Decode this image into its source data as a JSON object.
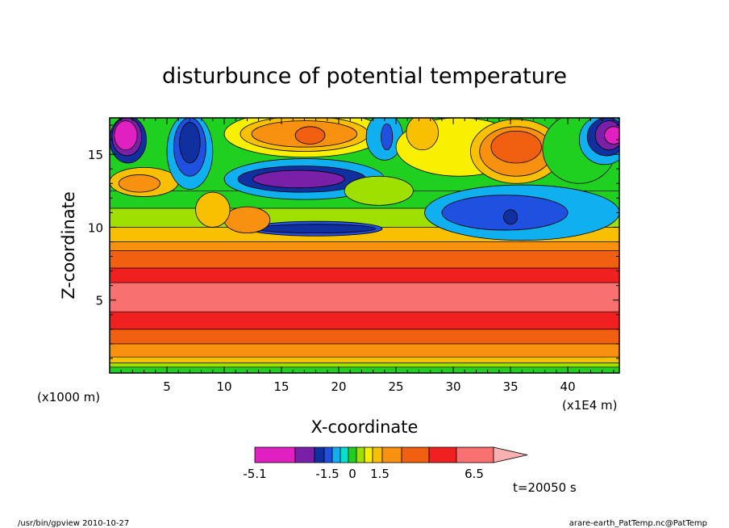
{
  "chart_data": {
    "type": "heatmap",
    "title": "disturbunce of potential temperature",
    "xlabel": "X-coordinate",
    "ylabel": "Z-coordinate",
    "x_unit": "(x1E4 m)",
    "y_unit": "(x1000 m)",
    "x_range": [
      0,
      44.5
    ],
    "y_range": [
      0,
      17.5
    ],
    "x_ticks": [
      5,
      10,
      15,
      20,
      25,
      30,
      35,
      40
    ],
    "y_ticks": [
      5,
      10,
      15
    ],
    "time_label": "t=20050 s",
    "colorbar": {
      "tick_labels": [
        "-5.1",
        "-1.5",
        "0",
        "1.5",
        "6.5"
      ],
      "colors": [
        "#e020c0",
        "#7a1fa8",
        "#1030a0",
        "#2050e0",
        "#10b0f0",
        "#00e0d0",
        "#20d020",
        "#a0e000",
        "#f8f000",
        "#f8c000",
        "#f89010",
        "#f06010",
        "#f02020",
        "#f87070",
        "#f8b0b0"
      ]
    },
    "bands": [
      {
        "z": 0.4,
        "color": "#20d020"
      },
      {
        "z": 0.7,
        "color": "#a0e000"
      },
      {
        "z": 1.1,
        "color": "#f8c000"
      },
      {
        "z": 2.0,
        "color": "#f89010"
      },
      {
        "z": 3.0,
        "color": "#f06010"
      },
      {
        "z": 4.2,
        "color": "#f02020"
      },
      {
        "z": 6.2,
        "color": "#f87070"
      },
      {
        "z": 7.2,
        "color": "#f02020"
      },
      {
        "z": 8.4,
        "color": "#f06010"
      },
      {
        "z": 9.0,
        "color": "#f89010"
      },
      {
        "z": 10.0,
        "color": "#f8c000"
      },
      {
        "z": 11.3,
        "color": "#a0e000"
      },
      {
        "z": 12.5,
        "color": "#20d020"
      },
      {
        "z": 17.5,
        "color": "#20d020"
      }
    ],
    "blobs": [
      {
        "x": 1.6,
        "z": 16.0,
        "rx": 1.6,
        "rz": 1.6,
        "color": "#1030a0"
      },
      {
        "x": 1.5,
        "z": 16.2,
        "rx": 1.3,
        "rz": 1.3,
        "color": "#7a1fa8"
      },
      {
        "x": 1.4,
        "z": 16.3,
        "rx": 1.0,
        "rz": 1.0,
        "color": "#e020c0"
      },
      {
        "x": 3.0,
        "z": 13.1,
        "rx": 3.0,
        "rz": 1.0,
        "color": "#f8c000"
      },
      {
        "x": 2.6,
        "z": 13.0,
        "rx": 1.8,
        "rz": 0.6,
        "color": "#f89010"
      },
      {
        "x": 7.0,
        "z": 15.2,
        "rx": 2.0,
        "rz": 2.6,
        "color": "#10b0f0"
      },
      {
        "x": 7.0,
        "z": 15.5,
        "rx": 1.4,
        "rz": 2.0,
        "color": "#2050e0"
      },
      {
        "x": 7.0,
        "z": 15.8,
        "rx": 0.9,
        "rz": 1.4,
        "color": "#1030a0"
      },
      {
        "x": 17.0,
        "z": 16.4,
        "rx": 7.0,
        "rz": 1.6,
        "color": "#f8f000"
      },
      {
        "x": 17.0,
        "z": 16.4,
        "rx": 5.6,
        "rz": 1.2,
        "color": "#f8c000"
      },
      {
        "x": 17.0,
        "z": 16.4,
        "rx": 4.6,
        "rz": 0.9,
        "color": "#f89010"
      },
      {
        "x": 17.5,
        "z": 16.3,
        "rx": 1.3,
        "rz": 0.6,
        "color": "#f06010"
      },
      {
        "x": 17.0,
        "z": 13.3,
        "rx": 7.0,
        "rz": 1.4,
        "color": "#10b0f0"
      },
      {
        "x": 16.8,
        "z": 13.3,
        "rx": 5.6,
        "rz": 0.9,
        "color": "#1030a0"
      },
      {
        "x": 16.5,
        "z": 13.3,
        "rx": 4.0,
        "rz": 0.6,
        "color": "#7a1fa8"
      },
      {
        "x": 18.0,
        "z": 9.9,
        "rx": 5.8,
        "rz": 0.5,
        "color": "#2050e0"
      },
      {
        "x": 18.0,
        "z": 9.9,
        "rx": 5.2,
        "rz": 0.3,
        "color": "#1030a0"
      },
      {
        "x": 24.0,
        "z": 16.2,
        "rx": 1.6,
        "rz": 1.6,
        "color": "#10b0f0"
      },
      {
        "x": 24.2,
        "z": 16.2,
        "rx": 0.5,
        "rz": 0.9,
        "color": "#2050e0"
      },
      {
        "x": 23.5,
        "z": 12.5,
        "rx": 3.0,
        "rz": 1.0,
        "color": "#a0e000"
      },
      {
        "x": 30.5,
        "z": 15.5,
        "rx": 5.5,
        "rz": 2.0,
        "color": "#f8f000"
      },
      {
        "x": 27.3,
        "z": 16.5,
        "rx": 1.4,
        "rz": 1.2,
        "color": "#f8c000"
      },
      {
        "x": 35.5,
        "z": 15.2,
        "rx": 4.0,
        "rz": 2.2,
        "color": "#f8c000"
      },
      {
        "x": 35.5,
        "z": 15.2,
        "rx": 3.2,
        "rz": 1.7,
        "color": "#f89010"
      },
      {
        "x": 35.5,
        "z": 15.5,
        "rx": 2.2,
        "rz": 1.1,
        "color": "#f06010"
      },
      {
        "x": 41.0,
        "z": 15.4,
        "rx": 3.2,
        "rz": 2.4,
        "color": "#20d020"
      },
      {
        "x": 43.2,
        "z": 16.0,
        "rx": 2.2,
        "rz": 1.7,
        "color": "#10b0f0"
      },
      {
        "x": 43.4,
        "z": 16.2,
        "rx": 1.7,
        "rz": 1.3,
        "color": "#1030a0"
      },
      {
        "x": 43.6,
        "z": 16.3,
        "rx": 1.2,
        "rz": 1.0,
        "color": "#7a1fa8"
      },
      {
        "x": 44.0,
        "z": 16.3,
        "rx": 0.8,
        "rz": 0.6,
        "color": "#e020c0"
      },
      {
        "x": 36.0,
        "z": 11.0,
        "rx": 8.5,
        "rz": 1.9,
        "color": "#10b0f0"
      },
      {
        "x": 34.5,
        "z": 11.0,
        "rx": 5.5,
        "rz": 1.2,
        "color": "#2050e0"
      },
      {
        "x": 35.0,
        "z": 10.7,
        "rx": 0.6,
        "rz": 0.5,
        "color": "#1030a0"
      },
      {
        "x": 12.0,
        "z": 10.5,
        "rx": 2.0,
        "rz": 0.9,
        "color": "#f89010"
      },
      {
        "x": 9.0,
        "z": 11.2,
        "rx": 1.5,
        "rz": 1.2,
        "color": "#f8c000"
      }
    ]
  },
  "footer": {
    "left": "/usr/bin/gpview   2010-10-27",
    "right": "arare-earth_PatTemp.nc@PatTemp"
  }
}
